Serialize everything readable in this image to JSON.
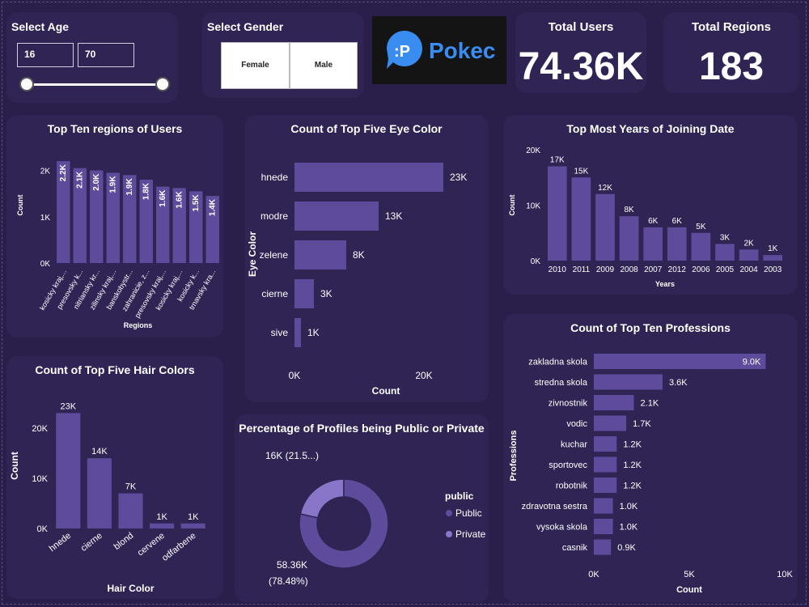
{
  "filters": {
    "age_label": "Select Age",
    "age_min": "16",
    "age_max": "70",
    "gender_label": "Select Gender",
    "gender_options": [
      "Female",
      "Male"
    ]
  },
  "logo": {
    "text": "Pokec",
    "glyph": ":P"
  },
  "kpis": {
    "users_title": "Total Users",
    "users_value": "74.36K",
    "regions_title": "Total Regions",
    "regions_value": "183"
  },
  "colors": {
    "bar": "#5f4b9b",
    "bar_light": "#8a76c8",
    "card": "#2f2454",
    "bg": "#2a1f4a"
  },
  "chart_data": [
    {
      "id": "regions",
      "type": "bar",
      "title": "Top Ten regions of Users",
      "xlabel": "Regions",
      "ylabel": "Count",
      "categories": [
        "kosicky kraj,...",
        "presovsky k...",
        "nitriansky kr...",
        "zilinsky kraj,...",
        "banskobystr...",
        "zahranicie, z...",
        "presovsky kraj,...",
        "kosicky kraj,...",
        "kosicky k...",
        "trnavsky kra..."
      ],
      "values": [
        2200,
        2050,
        2000,
        1950,
        1900,
        1800,
        1650,
        1620,
        1550,
        1450
      ],
      "labels": [
        "2.2K",
        "2.1K",
        "2.0K",
        "1.9K",
        "1.9K",
        "1.8K",
        "1.6K",
        "1.6K",
        "1.5K",
        "1.4K"
      ],
      "ylim": [
        0,
        2500
      ],
      "yticks": [
        "0K",
        "1K",
        "2K"
      ]
    },
    {
      "id": "eye",
      "type": "bar",
      "orientation": "horizontal",
      "title": "Count of Top Five Eye Color",
      "xlabel": "Count",
      "ylabel": "Eye Color",
      "categories": [
        "hnede",
        "modre",
        "zelene",
        "cierne",
        "sive"
      ],
      "values": [
        23000,
        13000,
        8000,
        3000,
        1000
      ],
      "labels": [
        "23K",
        "13K",
        "8K",
        "3K",
        "1K"
      ],
      "xlim": [
        0,
        27000
      ],
      "xticks": [
        "0K",
        "20K"
      ]
    },
    {
      "id": "years",
      "type": "bar",
      "title": "Top Most Years of Joining Date",
      "xlabel": "Years",
      "ylabel": "Count",
      "categories": [
        "2010",
        "2011",
        "2009",
        "2008",
        "2007",
        "2012",
        "2006",
        "2005",
        "2004",
        "2003"
      ],
      "values": [
        17000,
        15000,
        12000,
        8000,
        6000,
        6000,
        5000,
        3000,
        2000,
        1000
      ],
      "labels": [
        "17K",
        "15K",
        "12K",
        "8K",
        "6K",
        "6K",
        "5K",
        "3K",
        "2K",
        "1K"
      ],
      "ylim": [
        0,
        20000
      ],
      "yticks": [
        "0K",
        "10K",
        "20K"
      ]
    },
    {
      "id": "hair",
      "type": "bar",
      "title": "Count of Top Five Hair Colors",
      "xlabel": "Hair Color",
      "ylabel": "Count",
      "categories": [
        "hnede",
        "cierne",
        "blond",
        "cervene",
        "odfarbene"
      ],
      "values": [
        23000,
        14000,
        7000,
        1000,
        1000
      ],
      "labels": [
        "23K",
        "14K",
        "7K",
        "1K",
        "1K"
      ],
      "ylim": [
        0,
        25000
      ],
      "yticks": [
        "0K",
        "10K",
        "20K"
      ]
    },
    {
      "id": "public",
      "type": "pie",
      "title": "Percentage of Profiles being Public or Private",
      "legend_title": "public",
      "slices": [
        {
          "name": "Public",
          "value": 58360,
          "label": "58.36K",
          "pct_label": "(78.48%)"
        },
        {
          "name": "Private",
          "value": 16000,
          "label": "16K (21.5...)"
        }
      ]
    },
    {
      "id": "professions",
      "type": "bar",
      "orientation": "horizontal",
      "title": "Count of Top Ten Professions",
      "xlabel": "Count",
      "ylabel": "Professions",
      "categories": [
        "zakladna skola",
        "stredna skola",
        "zivnostnik",
        "vodic",
        "kuchar",
        "sportovec",
        "robotnik",
        "zdravotna sestra",
        "vysoka skola",
        "casnik"
      ],
      "values": [
        9000,
        3600,
        2100,
        1700,
        1200,
        1200,
        1200,
        1000,
        1000,
        900
      ],
      "labels": [
        "9.0K",
        "3.6K",
        "2.1K",
        "1.7K",
        "1.2K",
        "1.2K",
        "1.2K",
        "1.0K",
        "1.0K",
        "0.9K"
      ],
      "xlim": [
        0,
        10000
      ],
      "xticks": [
        "0K",
        "5K",
        "10K"
      ]
    }
  ]
}
